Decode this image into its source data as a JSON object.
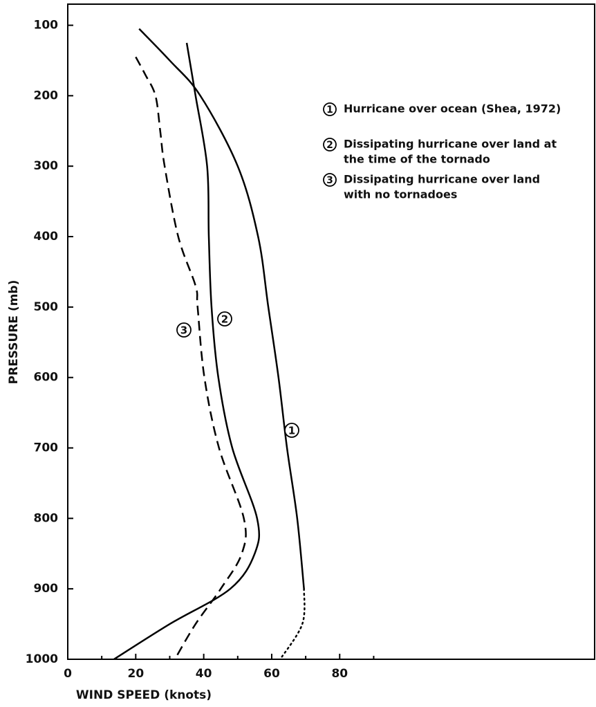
{
  "chart_data": {
    "type": "line",
    "xlabel": "WIND SPEED (knots)",
    "ylabel": "PRESSURE (mb)",
    "xlim": [
      0,
      155
    ],
    "ylim": [
      1000,
      70
    ],
    "xticks": [
      0,
      20,
      40,
      60,
      80
    ],
    "xminorticks": [
      10,
      30,
      50,
      70,
      90
    ],
    "yticks": [
      100,
      200,
      300,
      400,
      500,
      600,
      700,
      800,
      900,
      1000
    ],
    "series": [
      {
        "name": "1",
        "color": "#000000",
        "style": "solid",
        "description": [
          "Hurricane over ocean (Shea, 1972)"
        ],
        "x": [
          21,
          30,
          39,
          50,
          56,
          59,
          62,
          64.5,
          67.5,
          69.5
        ],
        "y": [
          105,
          150,
          200,
          300,
          400,
          500,
          600,
          700,
          800,
          900
        ]
      },
      {
        "name": "2",
        "color": "#000000",
        "style": "solid",
        "description": [
          "Dissipating hurricane over land at",
          "the time of the tornado"
        ],
        "x": [
          35,
          37.6,
          41,
          41.5,
          42.3,
          44.3,
          48.4,
          55.7,
          55,
          47.8,
          30,
          13.6
        ],
        "y": [
          125,
          200,
          300,
          400,
          500,
          600,
          700,
          800,
          850,
          900,
          950,
          1000
        ]
      },
      {
        "name": "3",
        "color": "#000000",
        "style": "dashed",
        "description": [
          "Dissipating hurricane over land",
          "with no tornadoes"
        ],
        "x": [
          20,
          22.8,
          25.8,
          27.2,
          28.5,
          32.5,
          37.6,
          38.2,
          40.2,
          44.5,
          51.8,
          51.2,
          45,
          37.6,
          31.5
        ],
        "y": [
          145,
          170,
          200,
          250,
          300,
          400,
          470,
          500,
          600,
          700,
          800,
          850,
          900,
          950,
          1000
        ]
      },
      {
        "color": "#000000",
        "style": "dotted",
        "x": [
          69.5,
          69,
          62.5
        ],
        "y": [
          900,
          950,
          1000
        ]
      }
    ]
  }
}
